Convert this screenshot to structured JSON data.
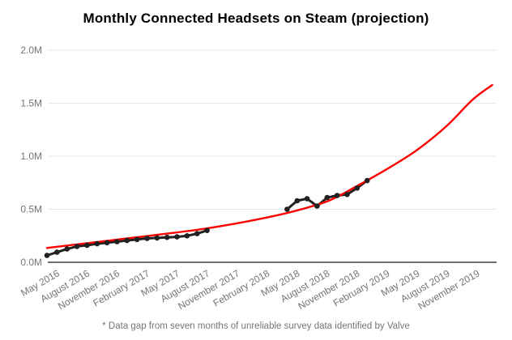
{
  "footnote": "* Data gap from seven months of unreliable survey data identified by Valve",
  "colors": {
    "projection_line": "#ff0000",
    "actual_line": "#212121",
    "marker": "#212121",
    "gridline": "#e6e6e6",
    "baseline": "#424242",
    "axis_label": "#757575",
    "title": "#000000",
    "background": "#ffffff"
  },
  "chart_data": {
    "type": "line",
    "title": "Monthly Connected Headsets on Steam (projection)",
    "xlabel": "",
    "ylabel": "",
    "ylim_millions": [
      0,
      2.0
    ],
    "grid": "horizontal-only",
    "legend_position": "none",
    "y_ticks": [
      {
        "value": 0.0,
        "label": "0.0M"
      },
      {
        "value": 0.5,
        "label": "0.5M"
      },
      {
        "value": 1.0,
        "label": "1.0M"
      },
      {
        "value": 1.5,
        "label": "1.5M"
      },
      {
        "value": 2.0,
        "label": "2.0M"
      }
    ],
    "x_ticks": [
      "May 2016",
      "August 2016",
      "November 2016",
      "February 2017",
      "May 2017",
      "August 2017",
      "November 2017",
      "February 2018",
      "May 2018",
      "August 2018",
      "November 2018",
      "February 2019",
      "May 2019",
      "August 2019",
      "November 2019"
    ],
    "series": [
      {
        "name": "actual-monthly-headsets-2016-2017",
        "style": "line-with-markers",
        "color": "#212121",
        "points": [
          {
            "m": 0,
            "month": "April 2016",
            "value_millions": 0.065
          },
          {
            "m": 1,
            "month": "May 2016",
            "value_millions": 0.095
          },
          {
            "m": 2,
            "month": "June 2016",
            "value_millions": 0.125
          },
          {
            "m": 3,
            "month": "July 2016",
            "value_millions": 0.15
          },
          {
            "m": 4,
            "month": "August 2016",
            "value_millions": 0.16
          },
          {
            "m": 5,
            "month": "September 2016",
            "value_millions": 0.175
          },
          {
            "m": 6,
            "month": "October 2016",
            "value_millions": 0.185
          },
          {
            "m": 7,
            "month": "November 2016",
            "value_millions": 0.195
          },
          {
            "m": 8,
            "month": "December 2016",
            "value_millions": 0.205
          },
          {
            "m": 9,
            "month": "January 2017",
            "value_millions": 0.215
          },
          {
            "m": 10,
            "month": "February 2017",
            "value_millions": 0.225
          },
          {
            "m": 11,
            "month": "March 2017",
            "value_millions": 0.23
          },
          {
            "m": 12,
            "month": "April 2017",
            "value_millions": 0.235
          },
          {
            "m": 13,
            "month": "May 2017",
            "value_millions": 0.24
          },
          {
            "m": 14,
            "month": "June 2017",
            "value_millions": 0.25
          },
          {
            "m": 15,
            "month": "July 2017",
            "value_millions": 0.27
          },
          {
            "m": 16,
            "month": "August 2017",
            "value_millions": 0.3
          }
        ]
      },
      {
        "name": "actual-monthly-headsets-2018",
        "style": "line-with-markers",
        "color": "#212121",
        "points": [
          {
            "m": 24,
            "month": "April 2018",
            "value_millions": 0.5
          },
          {
            "m": 25,
            "month": "May 2018",
            "value_millions": 0.58
          },
          {
            "m": 26,
            "month": "June 2018",
            "value_millions": 0.6
          },
          {
            "m": 27,
            "month": "July 2018",
            "value_millions": 0.53
          },
          {
            "m": 28,
            "month": "August 2018",
            "value_millions": 0.61
          },
          {
            "m": 29,
            "month": "September 2018",
            "value_millions": 0.63
          },
          {
            "m": 30,
            "month": "October 2018",
            "value_millions": 0.64
          },
          {
            "m": 31,
            "month": "November 2018",
            "value_millions": 0.7
          },
          {
            "m": 32,
            "month": "December 2018",
            "value_millions": 0.77
          }
        ]
      },
      {
        "name": "projection-curve",
        "style": "smooth-line",
        "color": "#ff0000",
        "points": [
          {
            "m": 0,
            "value_millions": 0.135
          },
          {
            "m": 4,
            "value_millions": 0.18
          },
          {
            "m": 8,
            "value_millions": 0.225
          },
          {
            "m": 12,
            "value_millions": 0.27
          },
          {
            "m": 16,
            "value_millions": 0.32
          },
          {
            "m": 20,
            "value_millions": 0.385
          },
          {
            "m": 24,
            "value_millions": 0.465
          },
          {
            "m": 28,
            "value_millions": 0.575
          },
          {
            "m": 31,
            "value_millions": 0.72
          },
          {
            "m": 34,
            "value_millions": 0.88
          },
          {
            "m": 37,
            "value_millions": 1.06
          },
          {
            "m": 40,
            "value_millions": 1.29
          },
          {
            "m": 42.5,
            "value_millions": 1.53
          },
          {
            "m": 44.5,
            "value_millions": 1.672
          }
        ]
      }
    ]
  }
}
